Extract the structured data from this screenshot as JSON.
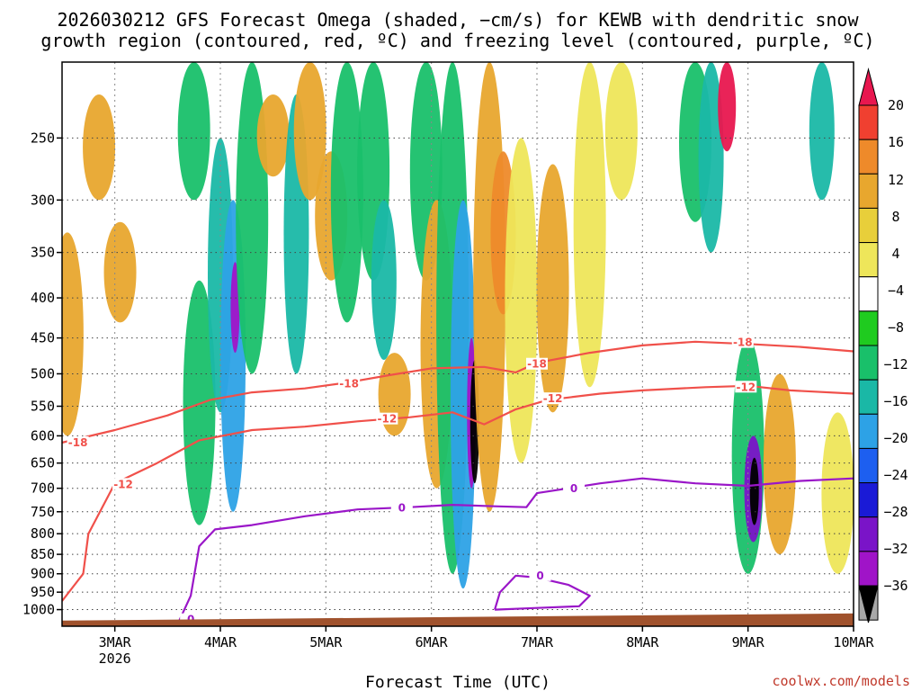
{
  "chart_data": {
    "type": "heatmap",
    "title_line1": "2026030212 GFS Forecast Omega (shaded, −cm/s) for KEWB with dendritic snow",
    "title_line2": "growth region (contoured, red, ºC) and freezing level (contoured, purple, ºC)",
    "xlabel": "Forecast Time (UTC)",
    "ylabel": "",
    "y_axis_unit": "hPa",
    "x_range_days": [
      2.5,
      10
    ],
    "y_range_hpa": [
      200,
      1050
    ],
    "y_ticks": [
      250,
      300,
      350,
      400,
      450,
      500,
      550,
      600,
      650,
      700,
      750,
      800,
      850,
      900,
      950,
      1000
    ],
    "x_ticks": [
      {
        "day": 3,
        "label": "3MAR",
        "sublabel": "2026"
      },
      {
        "day": 4,
        "label": "4MAR",
        "sublabel": ""
      },
      {
        "day": 5,
        "label": "5MAR",
        "sublabel": ""
      },
      {
        "day": 6,
        "label": "6MAR",
        "sublabel": ""
      },
      {
        "day": 7,
        "label": "7MAR",
        "sublabel": ""
      },
      {
        "day": 8,
        "label": "8MAR",
        "sublabel": ""
      },
      {
        "day": 9,
        "label": "9MAR",
        "sublabel": ""
      },
      {
        "day": 10,
        "label": "10MAR",
        "sublabel": ""
      }
    ],
    "grid": true,
    "colorbar": {
      "levels": [
        "20",
        "16",
        "12",
        "8",
        "4",
        "−4",
        "−8",
        "−12",
        "−16",
        "−20",
        "−24",
        "−28",
        "−32",
        "−36"
      ],
      "colors": [
        "#e8174f",
        "#f04030",
        "#ee8a2a",
        "#e8a72e",
        "#e8cf3a",
        "#eee65a",
        "#ffffff",
        "#1fcb1f",
        "#19c06a",
        "#1ab8a6",
        "#2da2e6",
        "#1d5ff0",
        "#1a1ad6",
        "#7a14c8",
        "#a014c8",
        "#a8a8a8",
        "#000000"
      ]
    },
    "omega_bands": [
      {
        "day": 2.55,
        "p_top": 330,
        "p_bot": 600,
        "value": 10
      },
      {
        "day": 2.85,
        "p_top": 220,
        "p_bot": 300,
        "value": 8
      },
      {
        "day": 3.05,
        "p_top": 320,
        "p_bot": 430,
        "value": 10
      },
      {
        "day": 3.75,
        "p_top": 200,
        "p_bot": 300,
        "value": -8
      },
      {
        "day": 3.8,
        "p_top": 380,
        "p_bot": 780,
        "value": -8
      },
      {
        "day": 4.0,
        "p_top": 250,
        "p_bot": 560,
        "value": -12
      },
      {
        "day": 4.12,
        "p_top": 300,
        "p_bot": 750,
        "value": -16
      },
      {
        "day": 4.14,
        "p_top": 360,
        "p_bot": 470,
        "value": -30
      },
      {
        "day": 4.3,
        "p_top": 200,
        "p_bot": 500,
        "value": -8
      },
      {
        "day": 4.5,
        "p_top": 220,
        "p_bot": 280,
        "value": 10
      },
      {
        "day": 4.72,
        "p_top": 220,
        "p_bot": 500,
        "value": -12
      },
      {
        "day": 4.85,
        "p_top": 200,
        "p_bot": 300,
        "value": 8
      },
      {
        "day": 5.05,
        "p_top": 260,
        "p_bot": 380,
        "value": 8
      },
      {
        "day": 5.2,
        "p_top": 200,
        "p_bot": 430,
        "value": -8
      },
      {
        "day": 5.45,
        "p_top": 200,
        "p_bot": 380,
        "value": -10
      },
      {
        "day": 5.55,
        "p_top": 300,
        "p_bot": 480,
        "value": -14
      },
      {
        "day": 5.65,
        "p_top": 470,
        "p_bot": 600,
        "value": 10
      },
      {
        "day": 5.95,
        "p_top": 200,
        "p_bot": 380,
        "value": -8
      },
      {
        "day": 6.05,
        "p_top": 300,
        "p_bot": 700,
        "value": 8
      },
      {
        "day": 6.2,
        "p_top": 200,
        "p_bot": 900,
        "value": -10
      },
      {
        "day": 6.3,
        "p_top": 300,
        "p_bot": 940,
        "value": -16
      },
      {
        "day": 6.38,
        "p_top": 450,
        "p_bot": 700,
        "value": -30
      },
      {
        "day": 6.41,
        "p_top": 480,
        "p_bot": 690,
        "value": -36
      },
      {
        "day": 6.55,
        "p_top": 200,
        "p_bot": 750,
        "value": 8
      },
      {
        "day": 6.68,
        "p_top": 260,
        "p_bot": 420,
        "value": 14
      },
      {
        "day": 6.85,
        "p_top": 250,
        "p_bot": 650,
        "value": 6
      },
      {
        "day": 7.15,
        "p_top": 270,
        "p_bot": 560,
        "value": 8
      },
      {
        "day": 7.5,
        "p_top": 200,
        "p_bot": 520,
        "value": 6
      },
      {
        "day": 7.8,
        "p_top": 200,
        "p_bot": 300,
        "value": 6
      },
      {
        "day": 8.5,
        "p_top": 200,
        "p_bot": 320,
        "value": -8
      },
      {
        "day": 8.65,
        "p_top": 200,
        "p_bot": 350,
        "value": -14
      },
      {
        "day": 8.8,
        "p_top": 200,
        "p_bot": 260,
        "value": 20
      },
      {
        "day": 9.0,
        "p_top": 450,
        "p_bot": 900,
        "value": -10
      },
      {
        "day": 9.05,
        "p_top": 600,
        "p_bot": 820,
        "value": -24
      },
      {
        "day": 9.06,
        "p_top": 640,
        "p_bot": 780,
        "value": -36
      },
      {
        "day": 9.3,
        "p_top": 500,
        "p_bot": 850,
        "value": 8
      },
      {
        "day": 9.7,
        "p_top": 200,
        "p_bot": 300,
        "value": -12
      },
      {
        "day": 9.85,
        "p_top": 560,
        "p_bot": 900,
        "value": 6
      }
    ],
    "contours": [
      {
        "name": "dgz -18C",
        "label": "-18",
        "color": "#f0504a",
        "points": [
          [
            2.5,
            612
          ],
          [
            3.0,
            590
          ],
          [
            3.5,
            565
          ],
          [
            3.9,
            540
          ],
          [
            4.3,
            528
          ],
          [
            4.8,
            522
          ],
          [
            5.2,
            513
          ],
          [
            5.6,
            502
          ],
          [
            6.0,
            492
          ],
          [
            6.5,
            490
          ],
          [
            6.8,
            498
          ],
          [
            7.0,
            484
          ],
          [
            7.5,
            470
          ],
          [
            8.0,
            460
          ],
          [
            8.5,
            455
          ],
          [
            9.0,
            458
          ],
          [
            9.5,
            462
          ],
          [
            10.0,
            468
          ]
        ],
        "label_at": [
          [
            2.65,
            612
          ],
          [
            5.22,
            515
          ],
          [
            7.0,
            486
          ],
          [
            8.95,
            456
          ]
        ]
      },
      {
        "name": "dgz -12C",
        "label": "-12",
        "color": "#f0504a",
        "points": [
          [
            2.5,
            975
          ],
          [
            2.7,
            900
          ],
          [
            2.75,
            800
          ],
          [
            3.0,
            690
          ],
          [
            3.4,
            650
          ],
          [
            3.8,
            608
          ],
          [
            4.3,
            590
          ],
          [
            4.8,
            584
          ],
          [
            5.3,
            575
          ],
          [
            5.8,
            568
          ],
          [
            6.2,
            560
          ],
          [
            6.5,
            580
          ],
          [
            6.8,
            555
          ],
          [
            7.1,
            540
          ],
          [
            7.6,
            530
          ],
          [
            8.0,
            525
          ],
          [
            8.6,
            520
          ],
          [
            9.0,
            518
          ],
          [
            9.4,
            525
          ],
          [
            10.0,
            530
          ]
        ],
        "label_at": [
          [
            3.08,
            692
          ],
          [
            5.58,
            571
          ],
          [
            7.15,
            538
          ],
          [
            8.98,
            520
          ]
        ]
      },
      {
        "name": "freezing level 0C",
        "label": "0",
        "color": "#9a16c8",
        "points": [
          [
            3.6,
            1040
          ],
          [
            3.72,
            960
          ],
          [
            3.8,
            830
          ],
          [
            3.95,
            790
          ],
          [
            4.3,
            780
          ],
          [
            4.8,
            760
          ],
          [
            5.3,
            745
          ],
          [
            5.8,
            740
          ],
          [
            6.2,
            735
          ],
          [
            6.6,
            738
          ],
          [
            6.9,
            740
          ],
          [
            7.0,
            710
          ],
          [
            7.3,
            700
          ],
          [
            7.6,
            690
          ],
          [
            8.0,
            680
          ],
          [
            8.5,
            690
          ],
          [
            9.0,
            695
          ],
          [
            9.5,
            685
          ],
          [
            10.0,
            680
          ]
        ],
        "label_at": [
          [
            3.72,
            1030
          ],
          [
            5.72,
            742
          ],
          [
            7.35,
            701
          ]
        ]
      },
      {
        "name": "freezing level 0C (lower blob)",
        "label": "0",
        "color": "#9a16c8",
        "points": [
          [
            6.6,
            1000
          ],
          [
            6.65,
            950
          ],
          [
            6.8,
            905
          ],
          [
            7.0,
            910
          ],
          [
            7.3,
            930
          ],
          [
            7.5,
            960
          ],
          [
            7.4,
            990
          ],
          [
            7.0,
            995
          ],
          [
            6.6,
            1000
          ]
        ],
        "label_at": [
          [
            7.03,
            905
          ]
        ]
      }
    ],
    "terrain_pressure_hpa": 1022,
    "terrain_color": "#a0522d"
  },
  "credit": "coolwx.com/models"
}
